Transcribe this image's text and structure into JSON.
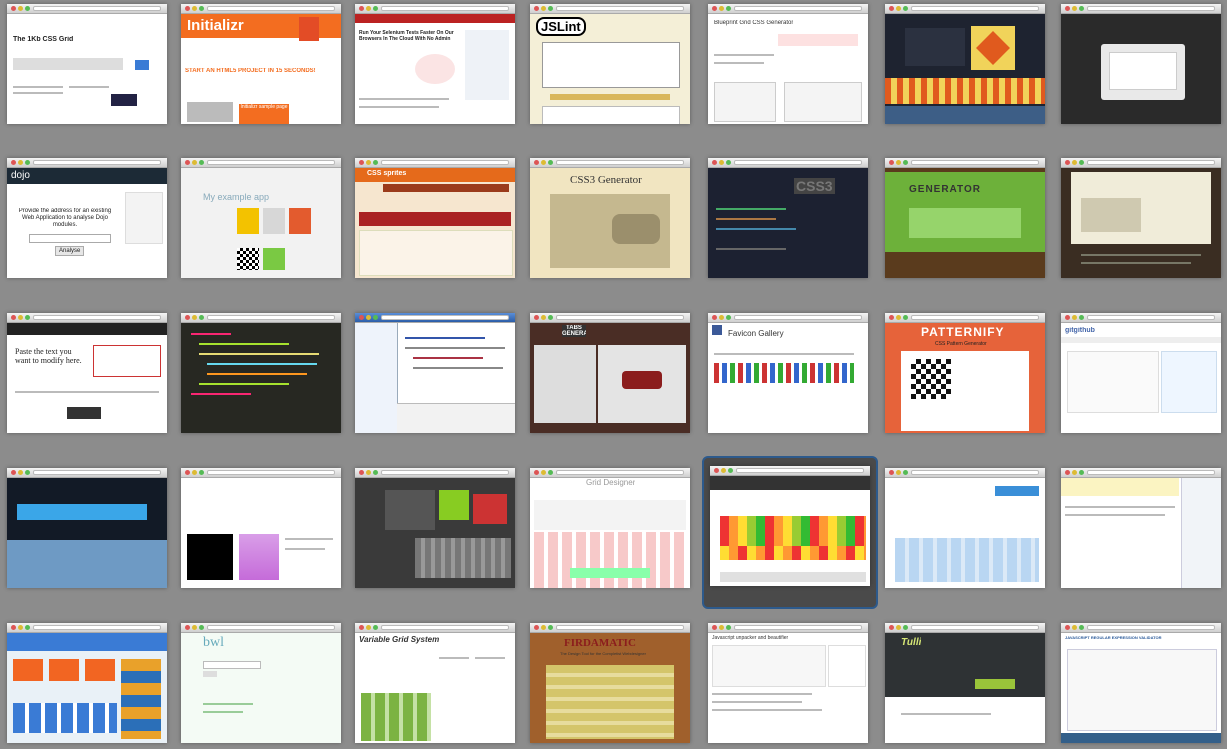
{
  "tiles": [
    {
      "title": "The 1Kb CSS Grid"
    },
    {
      "title": "Initializr",
      "subtitle": "START AN HTML5 PROJECT IN 15 SECONDS!",
      "btn": "Initializr sample page"
    },
    {
      "title": "Run Your Selenium Tests Faster On Our Browsers In The Cloud With No Admin"
    },
    {
      "title": "JSLint"
    },
    {
      "title": "Blueprint Grid CSS Generator"
    },
    {
      "title": ""
    },
    {
      "title": ""
    },
    {
      "title": "Provide the address for an existing Web Application to analyse Dojo modules.",
      "btn": "Analyse"
    },
    {
      "title": "My example app"
    },
    {
      "title": "CSS sprites"
    },
    {
      "title": "CSS3 Generator"
    },
    {
      "title": "CSS3"
    },
    {
      "title": "GENERATOR"
    },
    {
      "title": ""
    },
    {
      "title": "Paste the text you want to modify here."
    },
    {
      "title": ""
    },
    {
      "title": ""
    },
    {
      "title": "TABS GENERATOR"
    },
    {
      "title": "Favicon Gallery"
    },
    {
      "title": "PATTERNIFY",
      "subtitle": "CSS Pattern Generator"
    },
    {
      "title": "gitgithub"
    },
    {
      "title": ""
    },
    {
      "title": ""
    },
    {
      "title": ""
    },
    {
      "title": "Grid Designer"
    },
    {
      "title": ""
    },
    {
      "title": ""
    },
    {
      "title": ""
    },
    {
      "title": ""
    },
    {
      "title": ""
    },
    {
      "title": "Variable Grid System"
    },
    {
      "title": "FIRDAMATIC",
      "subtitle": "The Design Tool for the Completist Webdesigner"
    },
    {
      "title": "Javascript unpacker and beautifier"
    },
    {
      "title": "Tulli"
    },
    {
      "title": "JAVASCRIPT REGULAR EXPRESSION VALIDATOR"
    }
  ]
}
